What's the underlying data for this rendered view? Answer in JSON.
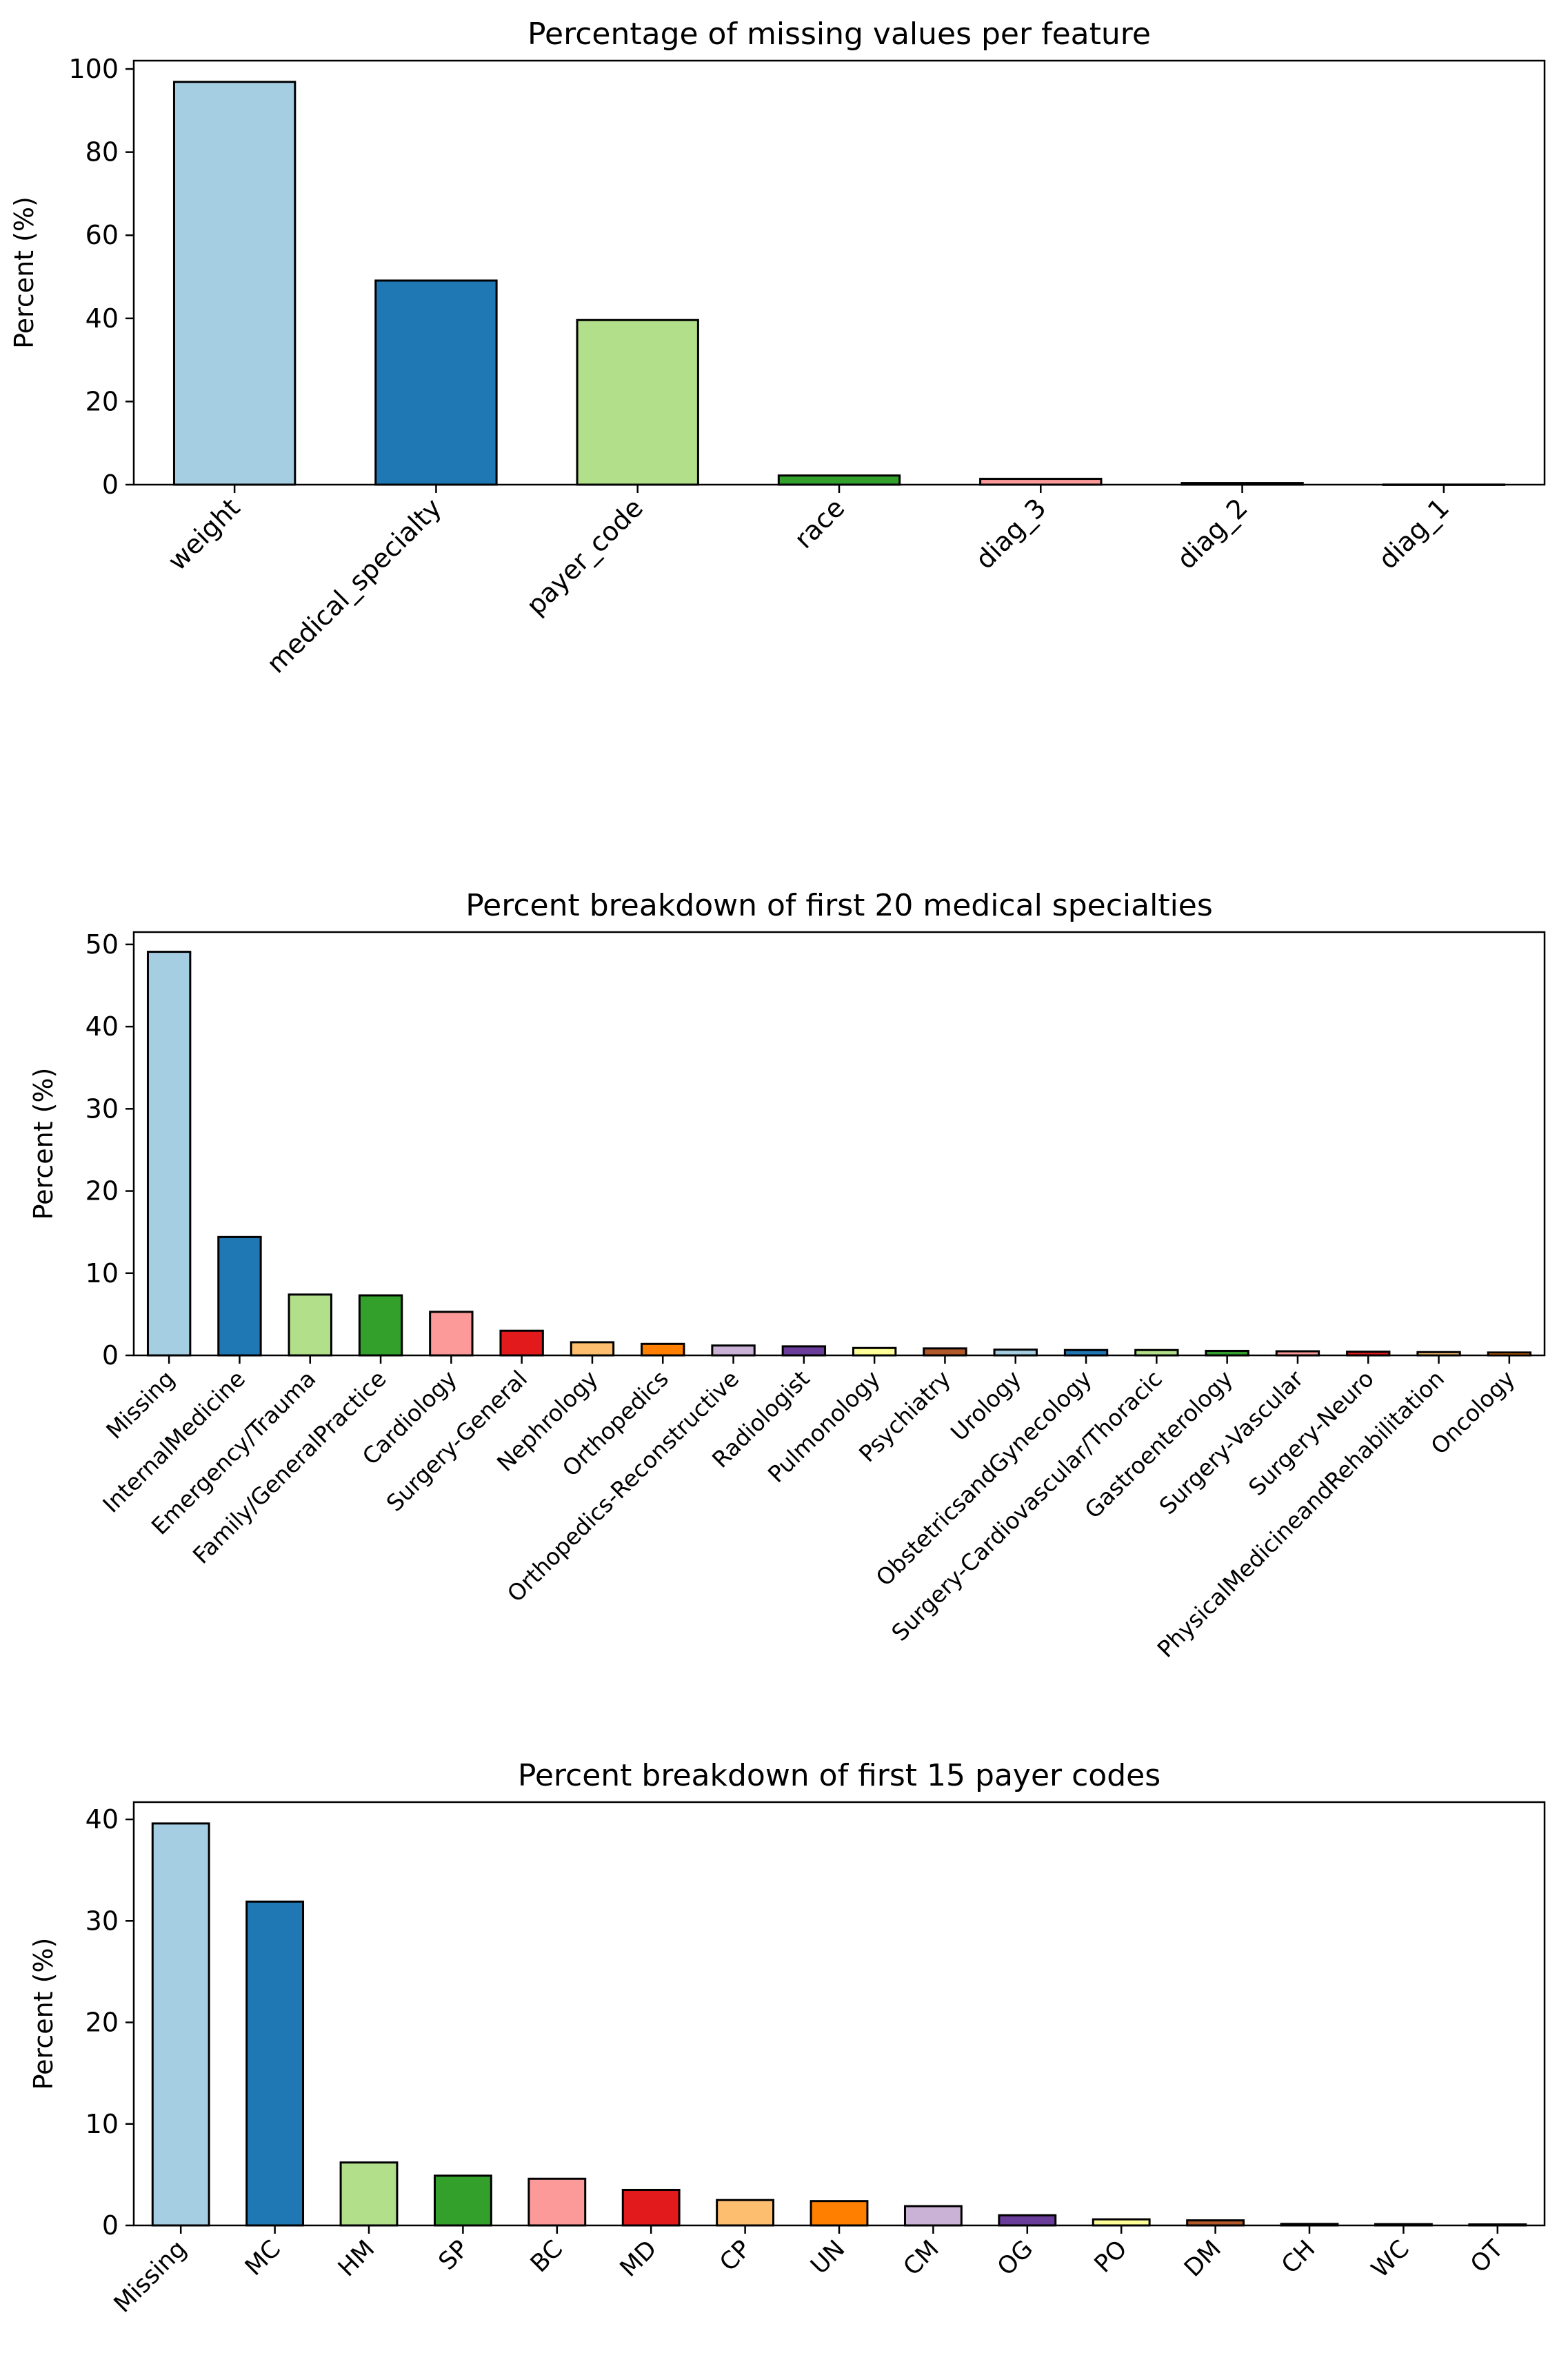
{
  "chart_data": [
    {
      "type": "bar",
      "title": "Percentage of missing values per feature",
      "xlabel": "",
      "ylabel": "Percent (%)",
      "ylim": [
        0,
        102
      ],
      "yticks": [
        0,
        20,
        40,
        60,
        80,
        100
      ],
      "categories": [
        "weight",
        "medical_specialty",
        "payer_code",
        "race",
        "diag_3",
        "diag_2",
        "diag_1"
      ],
      "values": [
        96.9,
        49.1,
        39.6,
        2.2,
        1.4,
        0.4,
        0.02
      ],
      "colors": [
        "#a6cee3",
        "#1f78b4",
        "#b2df8a",
        "#33a02c",
        "#fb9a99",
        "#e31a1c",
        "#fdbf6f"
      ],
      "grid": false,
      "legend": "none"
    },
    {
      "type": "bar",
      "title": "Percent breakdown of first 20 medical specialties",
      "xlabel": "",
      "ylabel": "Percent (%)",
      "ylim": [
        0,
        51.5
      ],
      "yticks": [
        0,
        10,
        20,
        30,
        40,
        50
      ],
      "categories": [
        "Missing",
        "InternalMedicine",
        "Emergency/Trauma",
        "Family/GeneralPractice",
        "Cardiology",
        "Surgery-General",
        "Nephrology",
        "Orthopedics",
        "Orthopedics-Reconstructive",
        "Radiologist",
        "Pulmonology",
        "Psychiatry",
        "Urology",
        "ObstetricsandGynecology",
        "Surgery-Cardiovascular/Thoracic",
        "Gastroenterology",
        "Surgery-Vascular",
        "Surgery-Neuro",
        "PhysicalMedicineandRehabilitation",
        "Oncology"
      ],
      "values": [
        49.1,
        14.4,
        7.4,
        7.3,
        5.3,
        3.0,
        1.6,
        1.4,
        1.2,
        1.1,
        0.9,
        0.85,
        0.7,
        0.65,
        0.65,
        0.55,
        0.5,
        0.45,
        0.4,
        0.35
      ],
      "colors": [
        "#a6cee3",
        "#1f78b4",
        "#b2df8a",
        "#33a02c",
        "#fb9a99",
        "#e31a1c",
        "#fdbf6f",
        "#ff7f00",
        "#cab2d6",
        "#6a3d9a",
        "#ffff99",
        "#b15928",
        "#a6cee3",
        "#1f78b4",
        "#b2df8a",
        "#33a02c",
        "#fb9a99",
        "#e31a1c",
        "#fdbf6f",
        "#ff7f00"
      ],
      "grid": false,
      "legend": "none"
    },
    {
      "type": "bar",
      "title": "Percent breakdown of first 15 payer codes",
      "xlabel": "",
      "ylabel": "Percent (%)",
      "ylim": [
        0,
        41.7
      ],
      "yticks": [
        0,
        10,
        20,
        30,
        40
      ],
      "categories": [
        "Missing",
        "MC",
        "HM",
        "SP",
        "BC",
        "MD",
        "CP",
        "UN",
        "CM",
        "OG",
        "PO",
        "DM",
        "CH",
        "WC",
        "OT"
      ],
      "values": [
        39.6,
        31.9,
        6.2,
        4.9,
        4.6,
        3.5,
        2.5,
        2.4,
        1.9,
        1.0,
        0.6,
        0.5,
        0.15,
        0.13,
        0.1
      ],
      "colors": [
        "#a6cee3",
        "#1f78b4",
        "#b2df8a",
        "#33a02c",
        "#fb9a99",
        "#e31a1c",
        "#fdbf6f",
        "#ff7f00",
        "#cab2d6",
        "#6a3d9a",
        "#ffff99",
        "#b15928",
        "#a6cee3",
        "#1f78b4",
        "#b2df8a"
      ],
      "grid": false,
      "legend": "none"
    }
  ]
}
